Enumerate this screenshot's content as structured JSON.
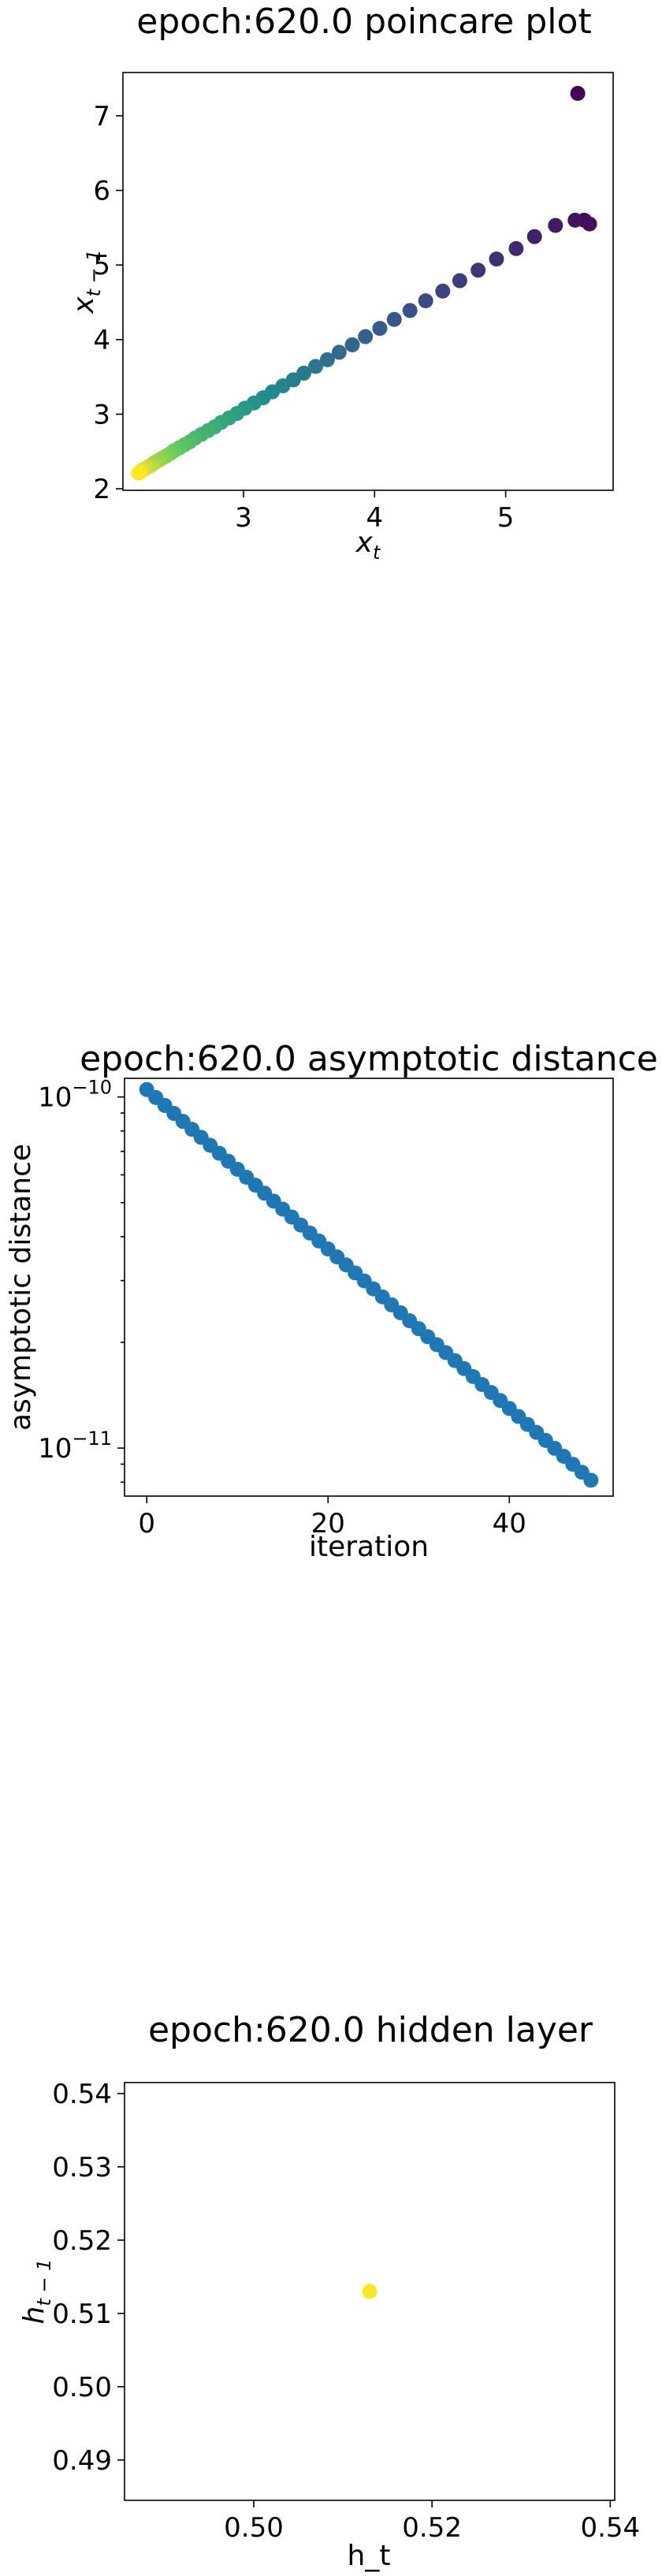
{
  "chart_data": [
    {
      "type": "scatter",
      "title": "epoch:620.0 poincare plot",
      "xlabel": {
        "base": "x",
        "sub": "t"
      },
      "ylabel": {
        "base": "x",
        "sub": "t − 1"
      },
      "xlim": [
        2.08,
        5.82
      ],
      "ylim": [
        1.98,
        7.58
      ],
      "xticks": [
        3,
        4,
        5
      ],
      "xtick_labels": [
        "3",
        "4",
        "5"
      ],
      "yticks": [
        2,
        3,
        4,
        5,
        6,
        7
      ],
      "ytick_labels": [
        "2",
        "3",
        "4",
        "5",
        "6",
        "7"
      ],
      "colormap": [
        "#440154",
        "#3b528b",
        "#21918c",
        "#5ec962",
        "#fde725"
      ],
      "x": [
        5.55,
        5.6,
        5.64,
        5.53,
        5.38,
        5.22,
        5.08,
        4.93,
        4.79,
        4.65,
        4.52,
        4.39,
        4.27,
        4.15,
        4.04,
        3.93,
        3.83,
        3.73,
        3.64,
        3.55,
        3.46,
        3.38,
        3.3,
        3.22,
        3.15,
        3.08,
        3.01,
        2.95,
        2.89,
        2.83,
        2.78,
        2.73,
        2.68,
        2.63,
        2.59,
        2.55,
        2.51,
        2.47,
        2.44,
        2.41,
        2.38,
        2.35,
        2.32,
        2.3,
        2.28,
        2.26,
        2.24,
        2.22,
        2.21,
        2.2
      ],
      "y": [
        7.3,
        5.6,
        5.55,
        5.6,
        5.53,
        5.38,
        5.22,
        5.08,
        4.93,
        4.79,
        4.65,
        4.52,
        4.39,
        4.27,
        4.15,
        4.04,
        3.93,
        3.83,
        3.73,
        3.64,
        3.55,
        3.46,
        3.38,
        3.3,
        3.22,
        3.15,
        3.08,
        3.01,
        2.95,
        2.89,
        2.83,
        2.78,
        2.73,
        2.68,
        2.63,
        2.59,
        2.55,
        2.51,
        2.47,
        2.44,
        2.41,
        2.38,
        2.35,
        2.32,
        2.3,
        2.28,
        2.26,
        2.24,
        2.22,
        2.21
      ]
    },
    {
      "type": "scatter",
      "title": "epoch:620.0 asymptotic distance",
      "xlabel": "iteration",
      "ylabel": "asymptotic distance",
      "yscale": "log",
      "xlim": [
        -2.45,
        51.45
      ],
      "ylim": [
        7.3e-12,
        1.13e-10
      ],
      "xticks": [
        0,
        20,
        40
      ],
      "xtick_labels": [
        "0",
        "20",
        "40"
      ],
      "yticks": [
        1e-10,
        1e-11
      ],
      "ytick_labels": [
        {
          "base": "10",
          "exp": "−10"
        },
        {
          "base": "10",
          "exp": "−11"
        }
      ],
      "color": "#1f77b4",
      "x_start": 0,
      "x_end": 49,
      "y_start": 1.05e-10,
      "y_end": 8.1e-12
    },
    {
      "type": "scatter",
      "title": "epoch:620.0 hidden layer",
      "xlabel": "h_t",
      "ylabel": {
        "base": "h",
        "sub": "t − 1"
      },
      "xlim": [
        0.4855,
        0.5405
      ],
      "ylim": [
        0.4845,
        0.5415
      ],
      "xticks": [
        0.5,
        0.52,
        0.54
      ],
      "xtick_labels": [
        "0.50",
        "0.52",
        "0.54"
      ],
      "yticks": [
        0.49,
        0.5,
        0.51,
        0.52,
        0.53,
        0.54
      ],
      "ytick_labels": [
        "0.49",
        "0.50",
        "0.51",
        "0.52",
        "0.53",
        "0.54"
      ],
      "color": "#fde725",
      "x": [
        0.513
      ],
      "y": [
        0.513
      ]
    }
  ]
}
